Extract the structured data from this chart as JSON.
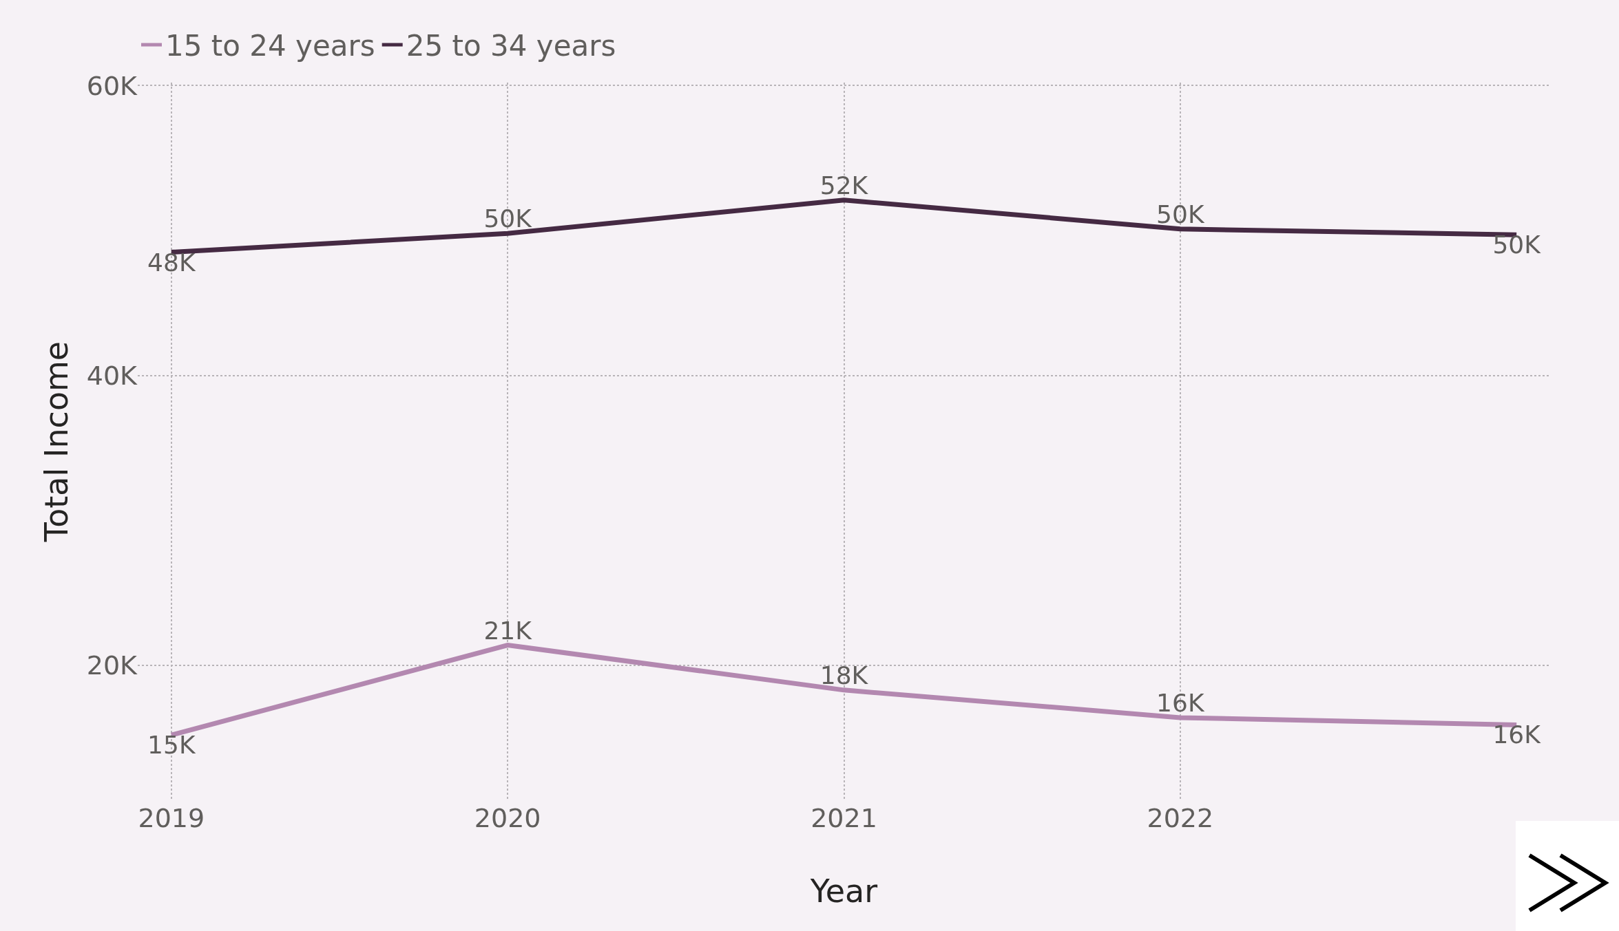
{
  "chart_data": {
    "type": "line",
    "xlabel": "Year",
    "ylabel": "Total Income",
    "categories": [
      "2019",
      "2020",
      "2021",
      "2022",
      null
    ],
    "series": [
      {
        "name": "15 to 24 years",
        "color": "#b388b0",
        "values": [
          15200,
          21400,
          18300,
          16400,
          15900
        ],
        "value_labels": [
          "15K",
          "21K",
          "18K",
          "16K",
          "16K"
        ]
      },
      {
        "name": "25 to 34 years",
        "color": "#452a43",
        "values": [
          48500,
          49800,
          52100,
          50100,
          49700
        ],
        "value_labels": [
          "48K",
          "50K",
          "52K",
          "50K",
          "50K"
        ]
      }
    ],
    "ylim": [
      10700,
      60200
    ],
    "yticks": [
      {
        "value": 20000,
        "label": "20K"
      },
      {
        "value": 40000,
        "label": "40K"
      },
      {
        "value": 60000,
        "label": "60K"
      }
    ],
    "grid": true,
    "legend": "top left",
    "marker": "none",
    "line_style": "solid"
  }
}
